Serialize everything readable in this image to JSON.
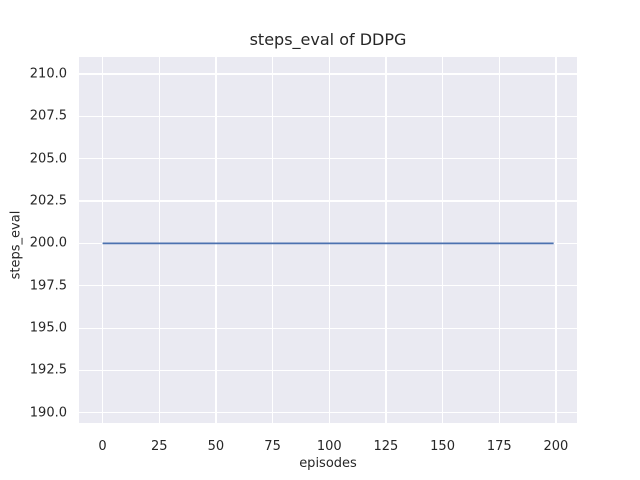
{
  "figure": {
    "background": "#ffffff",
    "axes_background": "#eaeaf2",
    "grid_color": "#ffffff",
    "text_color": "#262626"
  },
  "chart_data": {
    "type": "line",
    "title": "steps_eval of DDPG",
    "xlabel": "episodes",
    "ylabel": "steps_eval",
    "x_ticks": [
      0,
      25,
      50,
      75,
      100,
      125,
      150,
      175,
      200
    ],
    "y_ticks": [
      "190.0",
      "192.5",
      "195.0",
      "197.5",
      "200.0",
      "202.5",
      "205.0",
      "207.5",
      "210.0"
    ],
    "xlim": [
      -10.4,
      209.3
    ],
    "ylim": [
      189.4,
      211.0
    ],
    "grid": true,
    "legend": "none",
    "series": [
      {
        "name": "steps_eval of DDPG",
        "color": "#4c72b0",
        "x": [
          0,
          199
        ],
        "y": [
          200.0,
          200.0
        ],
        "description": "constant value 200 for every episode from 0 to 199"
      }
    ]
  }
}
